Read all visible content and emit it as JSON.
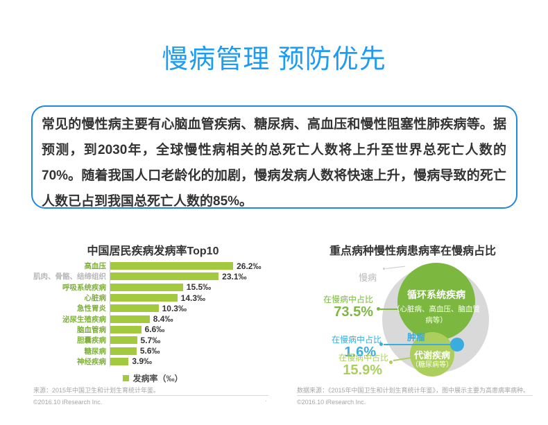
{
  "page": {
    "title": "慢病管理 预防优先",
    "title_color": "#1E9BF2",
    "accent_blue": "#1E88E0"
  },
  "intro": {
    "text": "常见的慢性病主要有心脑血管疾病、糖尿病、高血压和慢性阻塞性肺疾病等。据预测，到2030年，全球慢性病相关的总死亡人数将上升至世界总死亡人数的70%。随着我国人口老龄化的加剧，慢病发病人数将快速上升，慢病导致的死亡人数已占到我国总死亡人数的85%。"
  },
  "chart_data": [
    {
      "type": "bar",
      "orientation": "horizontal",
      "title": "中国居民疾病发病率Top10",
      "unit": "‰",
      "categories": [
        "高血压",
        "肌肉、骨骼、结缔组织",
        "呼吸系统疾病",
        "心脏病",
        "急性胃炎",
        "泌尿生殖疾病",
        "脑血管病",
        "胆囊疾病",
        "糖尿病",
        "神经疾病"
      ],
      "values": [
        26.2,
        23.1,
        15.5,
        14.3,
        10.3,
        8.4,
        6.6,
        5.7,
        5.6,
        3.9
      ],
      "value_labels": [
        "26.2‰",
        "23.1‰",
        "15.5‰",
        "14.3‰",
        "10.3‰",
        "8.4‰",
        "6.6‰",
        "5.7‰",
        "5.6‰",
        "3.9‰"
      ],
      "xlim": [
        0,
        28
      ],
      "legend": "发病率（‰）",
      "bar_color": "#A3C93E",
      "label_color": "#7FAF3E",
      "muted_label_color": "#B8B8B8",
      "muted_label_index": 1,
      "source": "来源：2015年中国卫生和计划生育统计年鉴。",
      "copyright": "©2016.10 iResearch Inc."
    },
    {
      "type": "bubble",
      "title": "重点病种慢性病患病率在慢病占比",
      "outer": {
        "label": "慢病",
        "color": "#D9D9D9",
        "label_color": "#B8B8B8"
      },
      "bubbles": [
        {
          "name": "循环系统疾病",
          "detail": "（心脏病、高血压、脑血管病等）",
          "share_label": "在慢病中占比",
          "share": "73.5%",
          "color": "#7CB840"
        },
        {
          "name": "肿瘤",
          "detail": "",
          "share_label": "在慢病中占比",
          "share": "1.6%",
          "color": "#3AADDE"
        },
        {
          "name": "代谢疾病",
          "detail": "（糖尿病等）",
          "share_label": "在慢病中占比",
          "share": "15.9%",
          "color": "#ABCE5D"
        }
      ],
      "source": "数据来源：《2015年中国卫生和计划生育统计年鉴》，图中展示主要为高患病率病种。",
      "copyright": "©2016.10 iResearch Inc."
    }
  ],
  "misc": {
    "stray_mark": "·"
  }
}
